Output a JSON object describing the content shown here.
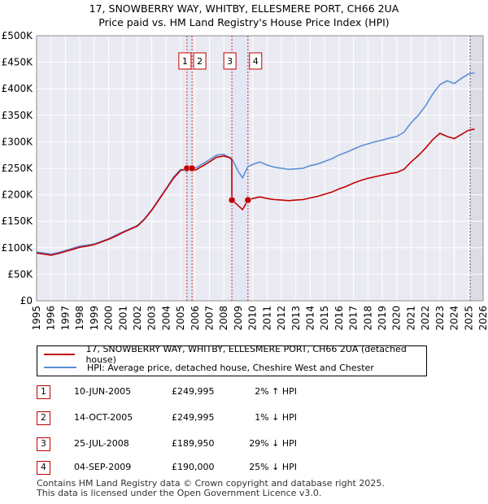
{
  "title": {
    "line1": "17, SNOWBERRY WAY, WHITBY, ELLESMERE PORT, CH66 2UA",
    "line2": "Price paid vs. HM Land Registry's House Price Index (HPI)"
  },
  "legend": {
    "property_label": "17, SNOWBERRY WAY, WHITBY, ELLESMERE PORT, CH66 2UA (detached house)",
    "hpi_label": "HPI: Average price, detached house, Cheshire West and Chester",
    "property_color": "#c00000",
    "hpi_color": "#5b8fd6"
  },
  "sales": [
    {
      "num": "1",
      "date": "10-JUN-2005",
      "price": "£249,995",
      "hpi": "2% ↑ HPI",
      "t": 2005.44,
      "v": 249995
    },
    {
      "num": "2",
      "date": "14-OCT-2005",
      "price": "£249,995",
      "hpi": "1% ↓ HPI",
      "t": 2005.79,
      "v": 249995
    },
    {
      "num": "3",
      "date": "25-JUL-2008",
      "price": "£189,950",
      "hpi": "29% ↓ HPI",
      "t": 2008.56,
      "v": 189950
    },
    {
      "num": "4",
      "date": "04-SEP-2009",
      "price": "£190,000",
      "hpi": "25% ↓ HPI",
      "t": 2009.67,
      "v": 190000
    }
  ],
  "footer": {
    "line1": "Contains HM Land Registry data © Crown copyright and database right 2025.",
    "line2": "This data is licensed under the Open Government Licence v3.0."
  },
  "chart_data": {
    "type": "line",
    "title": "17, SNOWBERRY WAY, WHITBY, ELLESMERE PORT, CH66 2UA — Price paid vs. HM Land Registry's House Price Index (HPI)",
    "xlim": [
      1995,
      2026
    ],
    "ylim": [
      0,
      500000
    ],
    "x_ticks": [
      "1995",
      "1996",
      "1997",
      "1998",
      "1999",
      "2000",
      "2001",
      "2002",
      "2003",
      "2004",
      "2005",
      "2006",
      "2007",
      "2008",
      "2009",
      "2010",
      "2011",
      "2012",
      "2013",
      "2014",
      "2015",
      "2016",
      "2017",
      "2018",
      "2019",
      "2020",
      "2021",
      "2022",
      "2023",
      "2024",
      "2025",
      "2026"
    ],
    "y_ticks": [
      {
        "v": 0,
        "label": "£0"
      },
      {
        "v": 50000,
        "label": "£50K"
      },
      {
        "v": 100000,
        "label": "£100K"
      },
      {
        "v": 150000,
        "label": "£150K"
      },
      {
        "v": 200000,
        "label": "£200K"
      },
      {
        "v": 250000,
        "label": "£250K"
      },
      {
        "v": 300000,
        "label": "£300K"
      },
      {
        "v": 350000,
        "label": "£350K"
      },
      {
        "v": 400000,
        "label": "£400K"
      },
      {
        "v": 450000,
        "label": "£450K"
      },
      {
        "v": 500000,
        "label": "£500K"
      }
    ],
    "grid": true,
    "future_shade_start": 2025.1,
    "series": [
      {
        "name": "HPI: Average price, detached house, Cheshire West and Chester",
        "color": "#5b8fd6",
        "points": [
          [
            1995.0,
            92000
          ],
          [
            1995.5,
            90000
          ],
          [
            1996.0,
            88000
          ],
          [
            1996.5,
            91000
          ],
          [
            1997.0,
            95000
          ],
          [
            1997.5,
            99000
          ],
          [
            1998.0,
            103000
          ],
          [
            1998.5,
            105000
          ],
          [
            1999.0,
            107000
          ],
          [
            1999.5,
            112000
          ],
          [
            2000.0,
            117000
          ],
          [
            2000.5,
            124000
          ],
          [
            2001.0,
            130000
          ],
          [
            2001.5,
            136000
          ],
          [
            2002.0,
            142000
          ],
          [
            2002.5,
            155000
          ],
          [
            2003.0,
            172000
          ],
          [
            2003.5,
            192000
          ],
          [
            2004.0,
            212000
          ],
          [
            2004.5,
            233000
          ],
          [
            2005.0,
            248000
          ],
          [
            2005.44,
            244000
          ],
          [
            2005.79,
            252000
          ],
          [
            2006.0,
            250000
          ],
          [
            2006.5,
            258000
          ],
          [
            2007.0,
            266000
          ],
          [
            2007.5,
            275000
          ],
          [
            2008.0,
            276000
          ],
          [
            2008.3,
            272000
          ],
          [
            2008.56,
            268000
          ],
          [
            2008.8,
            255000
          ],
          [
            2009.0,
            244000
          ],
          [
            2009.3,
            232000
          ],
          [
            2009.67,
            253000
          ],
          [
            2010.0,
            257000
          ],
          [
            2010.5,
            262000
          ],
          [
            2011.0,
            256000
          ],
          [
            2011.5,
            252000
          ],
          [
            2012.0,
            250000
          ],
          [
            2012.5,
            248000
          ],
          [
            2013.0,
            249000
          ],
          [
            2013.5,
            250000
          ],
          [
            2014.0,
            255000
          ],
          [
            2014.5,
            258000
          ],
          [
            2015.0,
            263000
          ],
          [
            2015.5,
            268000
          ],
          [
            2016.0,
            275000
          ],
          [
            2016.5,
            280000
          ],
          [
            2017.0,
            286000
          ],
          [
            2017.5,
            292000
          ],
          [
            2018.0,
            296000
          ],
          [
            2018.5,
            300000
          ],
          [
            2019.0,
            303000
          ],
          [
            2019.5,
            307000
          ],
          [
            2020.0,
            310000
          ],
          [
            2020.5,
            318000
          ],
          [
            2021.0,
            336000
          ],
          [
            2021.5,
            350000
          ],
          [
            2022.0,
            368000
          ],
          [
            2022.5,
            390000
          ],
          [
            2023.0,
            408000
          ],
          [
            2023.5,
            415000
          ],
          [
            2024.0,
            410000
          ],
          [
            2024.5,
            420000
          ],
          [
            2025.0,
            428000
          ],
          [
            2025.4,
            430000
          ]
        ]
      },
      {
        "name": "17, SNOWBERRY WAY, WHITBY, ELLESMERE PORT, CH66 2UA (detached house)",
        "color": "#c00000",
        "points": [
          [
            1995.0,
            90000
          ],
          [
            1995.5,
            88000
          ],
          [
            1996.0,
            86000
          ],
          [
            1996.5,
            89000
          ],
          [
            1997.0,
            93000
          ],
          [
            1997.5,
            97000
          ],
          [
            1998.0,
            101000
          ],
          [
            1998.5,
            103000
          ],
          [
            1999.0,
            106000
          ],
          [
            1999.5,
            111000
          ],
          [
            2000.0,
            116000
          ],
          [
            2000.5,
            122000
          ],
          [
            2001.0,
            129000
          ],
          [
            2001.5,
            135000
          ],
          [
            2002.0,
            141000
          ],
          [
            2002.5,
            154000
          ],
          [
            2003.0,
            171000
          ],
          [
            2003.5,
            191000
          ],
          [
            2004.0,
            211000
          ],
          [
            2004.5,
            231000
          ],
          [
            2005.0,
            246000
          ],
          [
            2005.44,
            249995
          ],
          [
            2005.79,
            249995
          ],
          [
            2006.0,
            246000
          ],
          [
            2006.5,
            254000
          ],
          [
            2007.0,
            262000
          ],
          [
            2007.5,
            271000
          ],
          [
            2008.0,
            273000
          ],
          [
            2008.4,
            270000
          ],
          [
            2008.55,
            266000
          ],
          [
            2008.56,
            189950
          ],
          [
            2008.9,
            182000
          ],
          [
            2009.3,
            172000
          ],
          [
            2009.67,
            190000
          ],
          [
            2010.0,
            193000
          ],
          [
            2010.5,
            196000
          ],
          [
            2011.0,
            193000
          ],
          [
            2011.5,
            191000
          ],
          [
            2012.0,
            190000
          ],
          [
            2012.5,
            189000
          ],
          [
            2013.0,
            190000
          ],
          [
            2013.5,
            191000
          ],
          [
            2014.0,
            194000
          ],
          [
            2014.5,
            197000
          ],
          [
            2015.0,
            201000
          ],
          [
            2015.5,
            205000
          ],
          [
            2016.0,
            211000
          ],
          [
            2016.5,
            216000
          ],
          [
            2017.0,
            222000
          ],
          [
            2017.5,
            227000
          ],
          [
            2018.0,
            231000
          ],
          [
            2018.5,
            234000
          ],
          [
            2019.0,
            237000
          ],
          [
            2019.5,
            240000
          ],
          [
            2020.0,
            242000
          ],
          [
            2020.5,
            248000
          ],
          [
            2021.0,
            262000
          ],
          [
            2021.5,
            274000
          ],
          [
            2022.0,
            288000
          ],
          [
            2022.5,
            304000
          ],
          [
            2023.0,
            316000
          ],
          [
            2023.5,
            310000
          ],
          [
            2024.0,
            306000
          ],
          [
            2024.5,
            314000
          ],
          [
            2025.0,
            322000
          ],
          [
            2025.4,
            324000
          ]
        ]
      }
    ]
  }
}
